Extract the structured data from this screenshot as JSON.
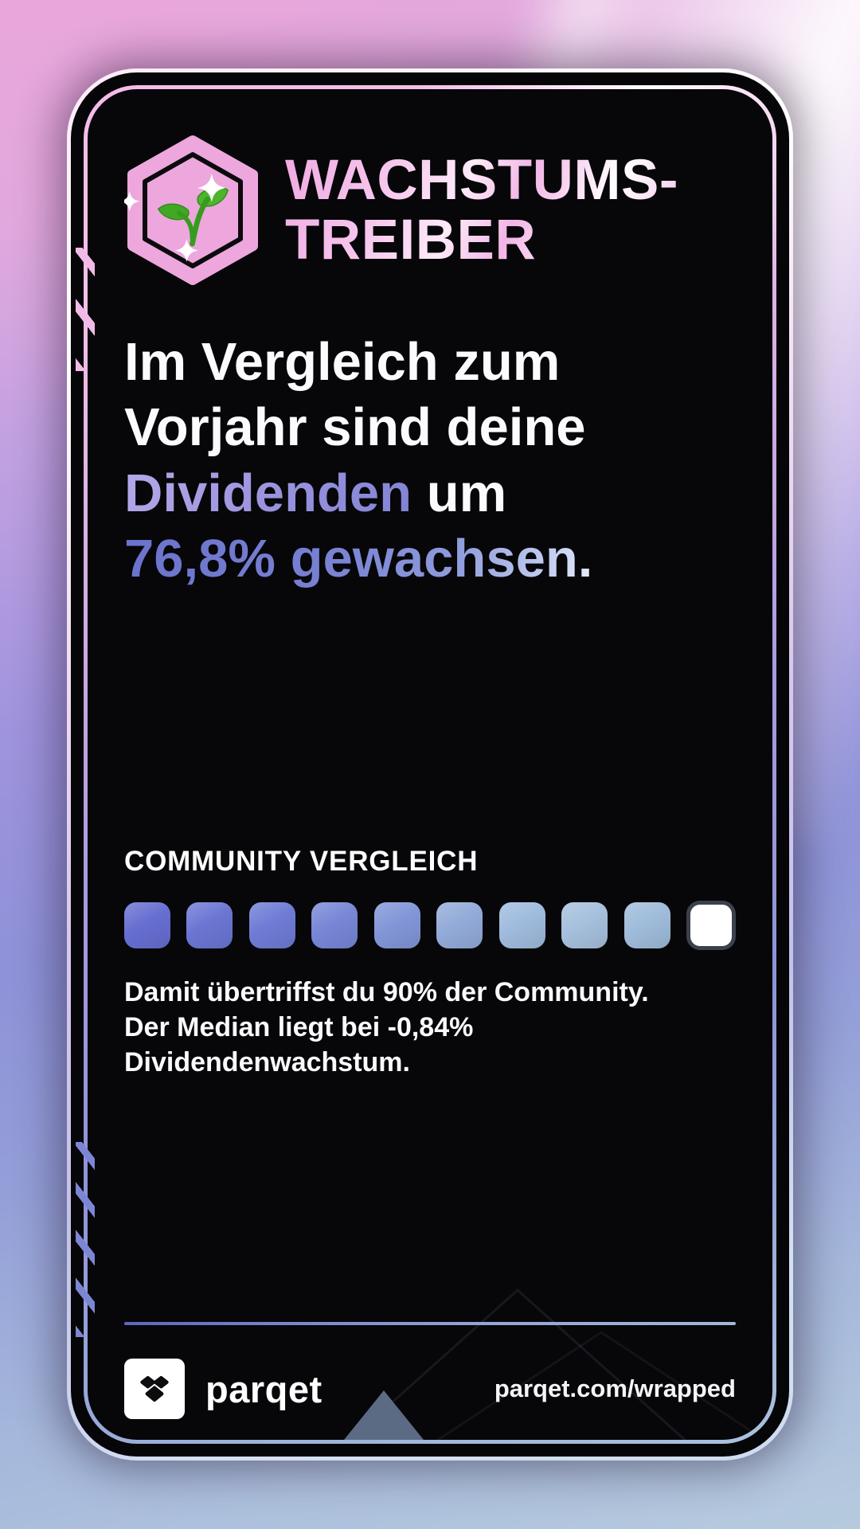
{
  "card": {
    "badge": {
      "icon": "sprout-hexagon-badge",
      "title_line1": "WACHSTUMS-",
      "title_line2": "TREIBER"
    },
    "headline": {
      "line1": "Im Vergleich zum",
      "line2": "Vorjahr sind deine",
      "line3_accent": "Dividenden",
      "line3_rest": " um",
      "line4": "76,8% gewachsen."
    },
    "community": {
      "label": "COMMUNITY VERGLEICH",
      "percentile_value": "90%",
      "percentile_blocks": [
        {
          "color": "#666fd0"
        },
        {
          "color": "#6b76d3"
        },
        {
          "color": "#6e7cd5"
        },
        {
          "color": "#7787d6"
        },
        {
          "color": "#8296d8"
        },
        {
          "color": "#93abd9"
        },
        {
          "color": "#9fbbdd"
        },
        {
          "color": "#a6c0dd"
        },
        {
          "color": "#9fbcda"
        },
        {
          "color": "#ffffff",
          "highlight": true
        }
      ],
      "description_line1": "Damit übertriffst du 90% der Community.",
      "description_line2": "Der Median liegt bei -0,84% Dividendenwachstum."
    },
    "footer": {
      "brand": "parqet",
      "url": "parqet.com/wrapped"
    }
  },
  "colors": {
    "accent_pink": "#f2b4e5",
    "accent_purple": "#9b8fdc",
    "accent_blue": "#6f7ace",
    "badge_pink": "#eda7dd",
    "divider_left": "#5e66bc",
    "divider_right": "#9fb8da",
    "triangle_gray": "#5c6b84",
    "highlight_block_border": "#3a414b",
    "card_background": "#070609"
  }
}
